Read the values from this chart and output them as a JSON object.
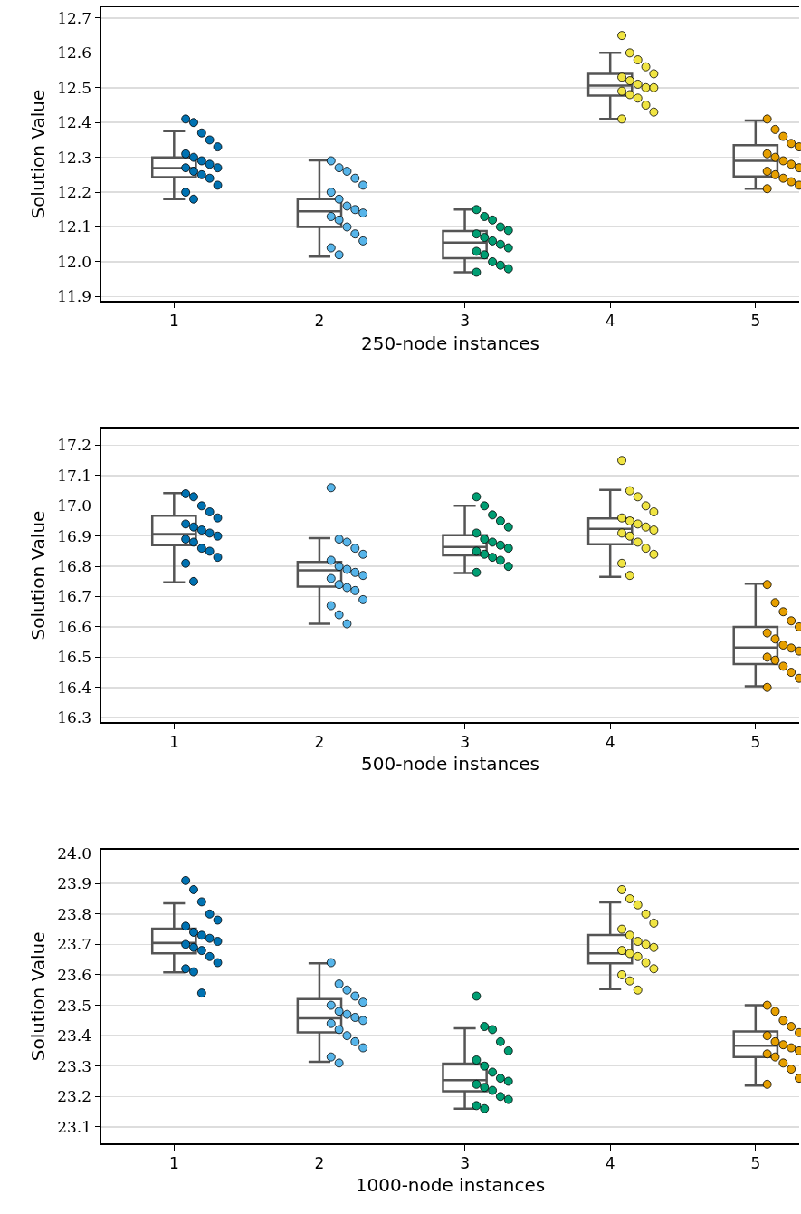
{
  "chart_data": [
    {
      "type": "box",
      "xlabel": "250-node instances",
      "ylabel": "Solution Value",
      "categories": [
        "1",
        "2",
        "3",
        "4",
        "5"
      ],
      "ylim": [
        11.887,
        12.731
      ],
      "yticks": [
        {
          "value": 11.9,
          "label": "11.9"
        },
        {
          "value": 12,
          "label": "12.0"
        },
        12.1,
        12.2,
        12.3,
        12.4,
        12.5,
        12.6,
        12.7
      ],
      "grid": "y",
      "marker": "circle",
      "boxes": [
        {
          "low": 12.18,
          "q1": 12.243,
          "median": 12.269,
          "q3": 12.3,
          "high": 12.375
        },
        {
          "low": 12.015,
          "q1": 12.1,
          "median": 12.145,
          "q3": 12.18,
          "high": 12.291
        },
        {
          "low": 11.97,
          "q1": 12.01,
          "median": 12.055,
          "q3": 12.088,
          "high": 12.15
        },
        {
          "low": 12.41,
          "q1": 12.477,
          "median": 12.506,
          "q3": 12.54,
          "high": 12.6
        },
        {
          "low": 12.21,
          "q1": 12.245,
          "median": 12.29,
          "q3": 12.335,
          "high": 12.406
        }
      ],
      "series": [
        {
          "type": "scatter",
          "color": "#0072b2",
          "x": [
            "1",
            "1",
            "1",
            "1",
            "1",
            "1",
            "1",
            "1",
            "1",
            "1",
            "1",
            "1",
            "1",
            "1",
            "1",
            "1",
            "1"
          ],
          "values": [
            12.41,
            12.4,
            12.37,
            12.35,
            12.33,
            12.31,
            12.3,
            12.29,
            12.28,
            12.27,
            12.27,
            12.26,
            12.25,
            12.24,
            12.22,
            12.2,
            12.18
          ]
        },
        {
          "type": "scatter",
          "color": "#56b4e9",
          "x": [
            "2",
            "2",
            "2",
            "2",
            "2",
            "2",
            "2",
            "2",
            "2",
            "2",
            "2",
            "2",
            "2",
            "2",
            "2",
            "2",
            "2"
          ],
          "values": [
            12.29,
            12.27,
            12.26,
            12.24,
            12.22,
            12.2,
            12.18,
            12.16,
            12.15,
            12.14,
            12.13,
            12.12,
            12.1,
            12.08,
            12.06,
            12.04,
            12.02
          ]
        },
        {
          "type": "scatter",
          "color": "#009e73",
          "x": [
            "3",
            "3",
            "3",
            "3",
            "3",
            "3",
            "3",
            "3",
            "3",
            "3",
            "3",
            "3",
            "3",
            "3",
            "3",
            "3"
          ],
          "values": [
            12.15,
            12.13,
            12.12,
            12.1,
            12.09,
            12.08,
            12.07,
            12.06,
            12.05,
            12.04,
            12.03,
            12.02,
            12.0,
            11.99,
            11.98,
            11.97
          ]
        },
        {
          "type": "scatter",
          "color": "#f0e442",
          "x": [
            "4",
            "4",
            "4",
            "4",
            "4",
            "4",
            "4",
            "4",
            "4",
            "4",
            "4",
            "4",
            "4",
            "4",
            "4",
            "4"
          ],
          "values": [
            12.65,
            12.6,
            12.58,
            12.56,
            12.54,
            12.53,
            12.52,
            12.51,
            12.5,
            12.5,
            12.49,
            12.48,
            12.47,
            12.45,
            12.43,
            12.41
          ]
        },
        {
          "type": "scatter",
          "color": "#e69f00",
          "x": [
            "5",
            "5",
            "5",
            "5",
            "5",
            "5",
            "5",
            "5",
            "5",
            "5",
            "5",
            "5",
            "5",
            "5",
            "5",
            "5"
          ],
          "values": [
            12.41,
            12.38,
            12.36,
            12.34,
            12.33,
            12.31,
            12.3,
            12.29,
            12.28,
            12.27,
            12.26,
            12.25,
            12.24,
            12.23,
            12.22,
            12.21
          ]
        }
      ]
    },
    {
      "type": "box",
      "xlabel": "500-node instances",
      "ylabel": "Solution Value",
      "categories": [
        "1",
        "2",
        "3",
        "4",
        "5"
      ],
      "ylim": [
        16.285,
        17.256
      ],
      "yticks": [
        16.3,
        16.4,
        16.5,
        16.6,
        16.7,
        16.8,
        16.9,
        {
          "value": 17,
          "label": "17.0"
        },
        17.1,
        17.2
      ],
      "grid": "y",
      "marker": "circle",
      "boxes": [
        {
          "low": 16.747,
          "q1": 16.87,
          "median": 16.907,
          "q3": 16.967,
          "high": 17.042
        },
        {
          "low": 16.61,
          "q1": 16.733,
          "median": 16.787,
          "q3": 16.815,
          "high": 16.893
        },
        {
          "low": 16.778,
          "q1": 16.836,
          "median": 16.864,
          "q3": 16.903,
          "high": 17.0
        },
        {
          "low": 16.765,
          "q1": 16.873,
          "median": 16.924,
          "q3": 16.958,
          "high": 17.053
        },
        {
          "low": 16.404,
          "q1": 16.477,
          "median": 16.532,
          "q3": 16.6,
          "high": 16.743
        }
      ],
      "series": [
        {
          "type": "scatter",
          "color": "#0072b2",
          "x": [
            "1",
            "1",
            "1",
            "1",
            "1",
            "1",
            "1",
            "1",
            "1",
            "1",
            "1",
            "1",
            "1",
            "1",
            "1",
            "1",
            "1"
          ],
          "values": [
            17.04,
            17.03,
            17.0,
            16.98,
            16.96,
            16.94,
            16.93,
            16.92,
            16.91,
            16.9,
            16.89,
            16.88,
            16.86,
            16.85,
            16.83,
            16.81,
            16.75
          ]
        },
        {
          "type": "scatter",
          "color": "#56b4e9",
          "x": [
            "2",
            "2",
            "2",
            "2",
            "2",
            "2",
            "2",
            "2",
            "2",
            "2",
            "2",
            "2",
            "2",
            "2",
            "2",
            "2",
            "2",
            "2"
          ],
          "values": [
            17.06,
            16.89,
            16.88,
            16.86,
            16.84,
            16.82,
            16.8,
            16.79,
            16.78,
            16.77,
            16.76,
            16.74,
            16.73,
            16.72,
            16.69,
            16.67,
            16.64,
            16.61
          ]
        },
        {
          "type": "scatter",
          "color": "#009e73",
          "x": [
            "3",
            "3",
            "3",
            "3",
            "3",
            "3",
            "3",
            "3",
            "3",
            "3",
            "3",
            "3",
            "3",
            "3",
            "3",
            "3"
          ],
          "values": [
            17.03,
            17.0,
            16.97,
            16.95,
            16.93,
            16.91,
            16.89,
            16.88,
            16.87,
            16.86,
            16.85,
            16.84,
            16.83,
            16.82,
            16.8,
            16.78
          ]
        },
        {
          "type": "scatter",
          "color": "#f0e442",
          "x": [
            "4",
            "4",
            "4",
            "4",
            "4",
            "4",
            "4",
            "4",
            "4",
            "4",
            "4",
            "4",
            "4",
            "4",
            "4",
            "4",
            "4"
          ],
          "values": [
            17.15,
            17.05,
            17.03,
            17.0,
            16.98,
            16.96,
            16.95,
            16.94,
            16.93,
            16.92,
            16.91,
            16.9,
            16.88,
            16.86,
            16.84,
            16.81,
            16.77
          ]
        },
        {
          "type": "scatter",
          "color": "#e69f00",
          "x": [
            "5",
            "5",
            "5",
            "5",
            "5",
            "5",
            "5",
            "5",
            "5",
            "5",
            "5",
            "5",
            "5",
            "5",
            "5",
            "5"
          ],
          "values": [
            16.74,
            16.68,
            16.65,
            16.62,
            16.6,
            16.58,
            16.56,
            16.54,
            16.53,
            16.52,
            16.5,
            16.49,
            16.47,
            16.45,
            16.43,
            16.4
          ]
        }
      ]
    },
    {
      "type": "box",
      "xlabel": "1000-node instances",
      "ylabel": "Solution Value",
      "categories": [
        "1",
        "2",
        "3",
        "4",
        "5"
      ],
      "ylim": [
        23.046,
        24.012
      ],
      "yticks": [
        23.1,
        23.2,
        23.3,
        23.4,
        23.5,
        23.6,
        23.7,
        23.8,
        23.9,
        {
          "value": 24,
          "label": "24.0"
        }
      ],
      "grid": "y",
      "marker": "circle",
      "boxes": [
        {
          "low": 23.608,
          "q1": 23.671,
          "median": 23.705,
          "q3": 23.752,
          "high": 23.835
        },
        {
          "low": 23.314,
          "q1": 23.411,
          "median": 23.457,
          "q3": 23.52,
          "high": 23.638
        },
        {
          "low": 23.16,
          "q1": 23.217,
          "median": 23.254,
          "q3": 23.308,
          "high": 23.424
        },
        {
          "low": 23.553,
          "q1": 23.638,
          "median": 23.671,
          "q3": 23.731,
          "high": 23.838
        },
        {
          "low": 23.236,
          "q1": 23.33,
          "median": 23.367,
          "q3": 23.414,
          "high": 23.5
        }
      ],
      "series": [
        {
          "type": "scatter",
          "color": "#0072b2",
          "x": [
            "1",
            "1",
            "1",
            "1",
            "1",
            "1",
            "1",
            "1",
            "1",
            "1",
            "1",
            "1",
            "1",
            "1",
            "1",
            "1",
            "1",
            "1"
          ],
          "values": [
            23.91,
            23.88,
            23.84,
            23.8,
            23.78,
            23.76,
            23.74,
            23.73,
            23.72,
            23.71,
            23.7,
            23.69,
            23.68,
            23.66,
            23.64,
            23.62,
            23.61,
            23.54
          ]
        },
        {
          "type": "scatter",
          "color": "#56b4e9",
          "x": [
            "2",
            "2",
            "2",
            "2",
            "2",
            "2",
            "2",
            "2",
            "2",
            "2",
            "2",
            "2",
            "2",
            "2",
            "2",
            "2",
            "2"
          ],
          "values": [
            23.64,
            23.57,
            23.55,
            23.53,
            23.51,
            23.5,
            23.48,
            23.47,
            23.46,
            23.45,
            23.44,
            23.42,
            23.4,
            23.38,
            23.36,
            23.33,
            23.31
          ]
        },
        {
          "type": "scatter",
          "color": "#009e73",
          "x": [
            "3",
            "3",
            "3",
            "3",
            "3",
            "3",
            "3",
            "3",
            "3",
            "3",
            "3",
            "3",
            "3",
            "3",
            "3",
            "3",
            "3"
          ],
          "values": [
            23.53,
            23.43,
            23.42,
            23.38,
            23.35,
            23.32,
            23.3,
            23.28,
            23.26,
            23.25,
            23.24,
            23.23,
            23.22,
            23.2,
            23.19,
            23.17,
            23.16
          ]
        },
        {
          "type": "scatter",
          "color": "#f0e442",
          "x": [
            "4",
            "4",
            "4",
            "4",
            "4",
            "4",
            "4",
            "4",
            "4",
            "4",
            "4",
            "4",
            "4",
            "4",
            "4",
            "4",
            "4",
            "4"
          ],
          "values": [
            23.88,
            23.85,
            23.83,
            23.8,
            23.77,
            23.75,
            23.73,
            23.71,
            23.7,
            23.69,
            23.68,
            23.67,
            23.66,
            23.64,
            23.62,
            23.6,
            23.58,
            23.55
          ]
        },
        {
          "type": "scatter",
          "color": "#e69f00",
          "x": [
            "5",
            "5",
            "5",
            "5",
            "5",
            "5",
            "5",
            "5",
            "5",
            "5",
            "5",
            "5",
            "5",
            "5",
            "5",
            "5"
          ],
          "values": [
            23.5,
            23.48,
            23.45,
            23.43,
            23.41,
            23.4,
            23.38,
            23.37,
            23.36,
            23.35,
            23.34,
            23.33,
            23.31,
            23.29,
            23.26,
            23.24
          ]
        }
      ]
    }
  ]
}
